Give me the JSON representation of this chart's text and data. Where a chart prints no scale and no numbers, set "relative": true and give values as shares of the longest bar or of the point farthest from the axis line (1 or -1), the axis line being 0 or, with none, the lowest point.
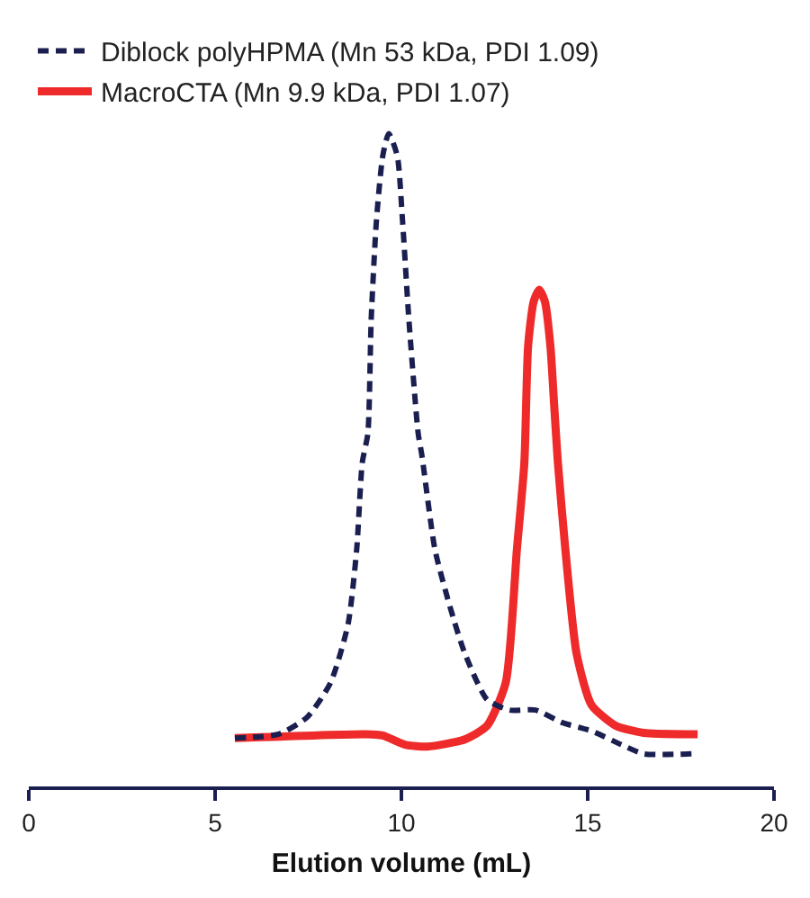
{
  "chart_data": {
    "type": "line",
    "relative": true,
    "xlabel": "Elution volume (mL)",
    "xlim": [
      0,
      20
    ],
    "xticks": [
      0,
      5,
      10,
      15,
      20
    ],
    "grid": false,
    "legend": "top left",
    "marker": "none",
    "series": [
      {
        "name": "Diblock polyHPMA (Mn 53 kDa, PDI 1.09)",
        "color": "#1b1f50",
        "line_style": "dashed",
        "x": [
          5.53,
          6.7,
          7.47,
          8.1,
          8.57,
          8.8,
          8.95,
          9.1,
          9.19,
          9.33,
          9.5,
          9.66,
          9.89,
          10.03,
          10.2,
          10.45,
          10.55,
          10.9,
          11.3,
          11.7,
          12.3,
          12.9,
          13.6,
          14.3,
          15.1,
          15.9,
          16.5,
          17.8
        ],
        "values": [
          0.074,
          0.08,
          0.106,
          0.159,
          0.249,
          0.363,
          0.496,
          0.541,
          0.716,
          0.867,
          0.966,
          1.0,
          0.966,
          0.867,
          0.716,
          0.541,
          0.507,
          0.363,
          0.276,
          0.204,
          0.133,
          0.117,
          0.117,
          0.098,
          0.085,
          0.064,
          0.05,
          0.05
        ]
      },
      {
        "name": "MacroCTA (Mn 9.9 kDa, PDI 1.07)",
        "color": "#ee2a2a",
        "line_style": "solid",
        "x": [
          5.53,
          9.05,
          9.5,
          10.1,
          10.7,
          11.7,
          12.3,
          12.8,
          13.1,
          13.3,
          13.4,
          13.55,
          13.7,
          13.85,
          14.0,
          14.1,
          14.2,
          14.4,
          14.7,
          15.1,
          15.75,
          16.5,
          17.95
        ],
        "values": [
          0.074,
          0.08,
          0.078,
          0.064,
          0.061,
          0.072,
          0.093,
          0.159,
          0.363,
          0.496,
          0.674,
          0.743,
          0.761,
          0.743,
          0.674,
          0.584,
          0.496,
          0.363,
          0.204,
          0.125,
          0.093,
          0.082,
          0.08
        ]
      }
    ]
  }
}
